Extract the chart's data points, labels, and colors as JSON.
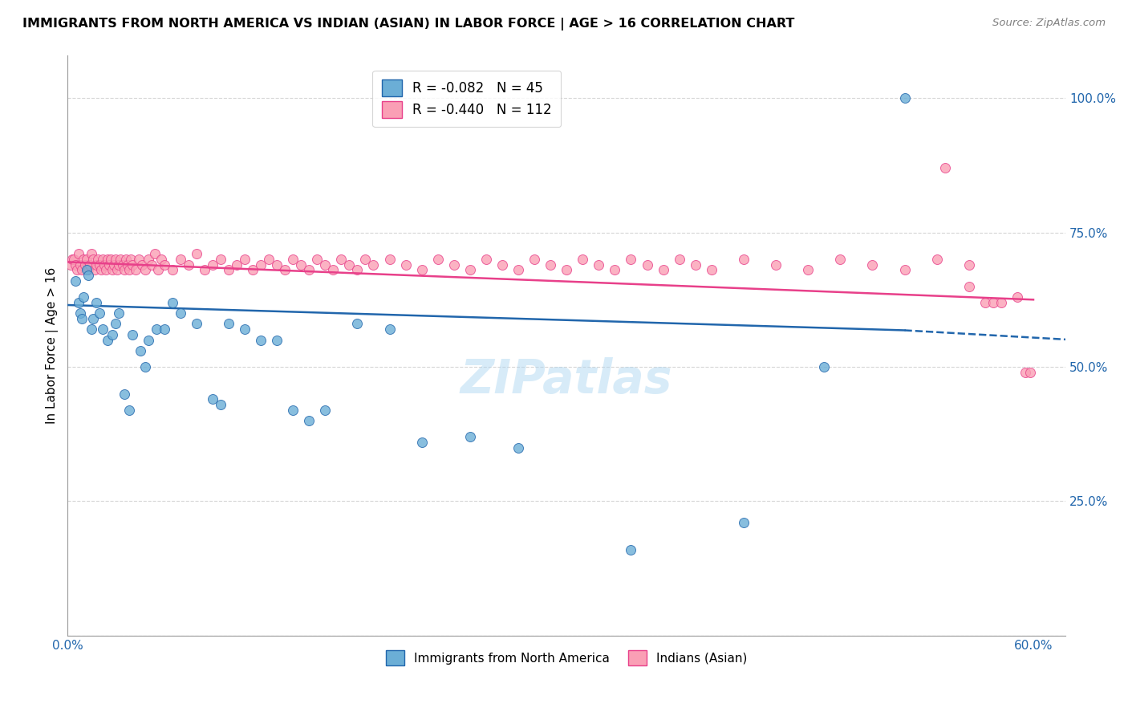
{
  "title": "IMMIGRANTS FROM NORTH AMERICA VS INDIAN (ASIAN) IN LABOR FORCE | AGE > 16 CORRELATION CHART",
  "source": "Source: ZipAtlas.com",
  "ylabel": "In Labor Force | Age > 16",
  "xlim": [
    0.0,
    0.62
  ],
  "ylim": [
    0.0,
    1.08
  ],
  "yticks": [
    0.0,
    0.25,
    0.5,
    0.75,
    1.0
  ],
  "ytick_labels": [
    "",
    "25.0%",
    "50.0%",
    "75.0%",
    "100.0%"
  ],
  "xticks": [
    0.0,
    0.1,
    0.2,
    0.3,
    0.4,
    0.5,
    0.6
  ],
  "xtick_labels": [
    "0.0%",
    "",
    "",
    "",
    "",
    "",
    "60.0%"
  ],
  "blue_R": -0.082,
  "blue_N": 45,
  "pink_R": -0.44,
  "pink_N": 112,
  "blue_color": "#6baed6",
  "pink_color": "#fa9fb5",
  "blue_line_color": "#2166ac",
  "pink_line_color": "#e8408a",
  "watermark": "ZIPatlas",
  "legend_label_blue": "Immigrants from North America",
  "legend_label_pink": "Indians (Asian)",
  "blue_scatter_x": [
    0.005,
    0.007,
    0.008,
    0.009,
    0.01,
    0.012,
    0.013,
    0.015,
    0.016,
    0.018,
    0.02,
    0.022,
    0.025,
    0.028,
    0.03,
    0.032,
    0.035,
    0.038,
    0.04,
    0.045,
    0.048,
    0.05,
    0.055,
    0.06,
    0.065,
    0.07,
    0.08,
    0.09,
    0.095,
    0.1,
    0.11,
    0.12,
    0.13,
    0.14,
    0.15,
    0.16,
    0.18,
    0.2,
    0.22,
    0.25,
    0.28,
    0.35,
    0.42,
    0.47,
    0.52
  ],
  "blue_scatter_y": [
    0.66,
    0.62,
    0.6,
    0.59,
    0.63,
    0.68,
    0.67,
    0.57,
    0.59,
    0.62,
    0.6,
    0.57,
    0.55,
    0.56,
    0.58,
    0.6,
    0.45,
    0.42,
    0.56,
    0.53,
    0.5,
    0.55,
    0.57,
    0.57,
    0.62,
    0.6,
    0.58,
    0.44,
    0.43,
    0.58,
    0.57,
    0.55,
    0.55,
    0.42,
    0.4,
    0.42,
    0.58,
    0.57,
    0.36,
    0.37,
    0.35,
    0.16,
    0.21,
    0.5,
    1.0
  ],
  "pink_scatter_x": [
    0.002,
    0.003,
    0.004,
    0.005,
    0.006,
    0.007,
    0.008,
    0.009,
    0.01,
    0.011,
    0.012,
    0.013,
    0.014,
    0.015,
    0.016,
    0.017,
    0.018,
    0.019,
    0.02,
    0.021,
    0.022,
    0.023,
    0.024,
    0.025,
    0.026,
    0.027,
    0.028,
    0.029,
    0.03,
    0.031,
    0.032,
    0.033,
    0.034,
    0.035,
    0.036,
    0.037,
    0.038,
    0.039,
    0.04,
    0.042,
    0.044,
    0.046,
    0.048,
    0.05,
    0.052,
    0.054,
    0.056,
    0.058,
    0.06,
    0.065,
    0.07,
    0.075,
    0.08,
    0.085,
    0.09,
    0.095,
    0.1,
    0.105,
    0.11,
    0.115,
    0.12,
    0.125,
    0.13,
    0.135,
    0.14,
    0.145,
    0.15,
    0.155,
    0.16,
    0.165,
    0.17,
    0.175,
    0.18,
    0.185,
    0.19,
    0.2,
    0.21,
    0.22,
    0.23,
    0.24,
    0.25,
    0.26,
    0.27,
    0.28,
    0.29,
    0.3,
    0.31,
    0.32,
    0.33,
    0.34,
    0.35,
    0.36,
    0.37,
    0.38,
    0.39,
    0.4,
    0.42,
    0.44,
    0.46,
    0.48,
    0.5,
    0.52,
    0.54,
    0.56,
    0.57,
    0.575,
    0.58,
    0.59,
    0.595,
    0.598,
    0.56,
    0.545
  ],
  "pink_scatter_y": [
    0.69,
    0.7,
    0.7,
    0.69,
    0.68,
    0.71,
    0.69,
    0.68,
    0.7,
    0.69,
    0.7,
    0.68,
    0.69,
    0.71,
    0.7,
    0.68,
    0.69,
    0.7,
    0.69,
    0.68,
    0.7,
    0.69,
    0.68,
    0.7,
    0.69,
    0.7,
    0.68,
    0.69,
    0.7,
    0.68,
    0.69,
    0.7,
    0.69,
    0.68,
    0.7,
    0.69,
    0.68,
    0.7,
    0.69,
    0.68,
    0.7,
    0.69,
    0.68,
    0.7,
    0.69,
    0.71,
    0.68,
    0.7,
    0.69,
    0.68,
    0.7,
    0.69,
    0.71,
    0.68,
    0.69,
    0.7,
    0.68,
    0.69,
    0.7,
    0.68,
    0.69,
    0.7,
    0.69,
    0.68,
    0.7,
    0.69,
    0.68,
    0.7,
    0.69,
    0.68,
    0.7,
    0.69,
    0.68,
    0.7,
    0.69,
    0.7,
    0.69,
    0.68,
    0.7,
    0.69,
    0.68,
    0.7,
    0.69,
    0.68,
    0.7,
    0.69,
    0.68,
    0.7,
    0.69,
    0.68,
    0.7,
    0.69,
    0.68,
    0.7,
    0.69,
    0.68,
    0.7,
    0.69,
    0.68,
    0.7,
    0.69,
    0.68,
    0.7,
    0.69,
    0.62,
    0.62,
    0.62,
    0.63,
    0.49,
    0.49,
    0.65,
    0.87
  ],
  "blue_line_x": [
    0.0,
    0.52,
    0.62
  ],
  "blue_line_y": [
    0.615,
    0.568,
    0.551
  ],
  "blue_line_solid_end": 0.52,
  "pink_line_x": [
    0.0,
    0.6
  ],
  "pink_line_y": [
    0.695,
    0.625
  ]
}
